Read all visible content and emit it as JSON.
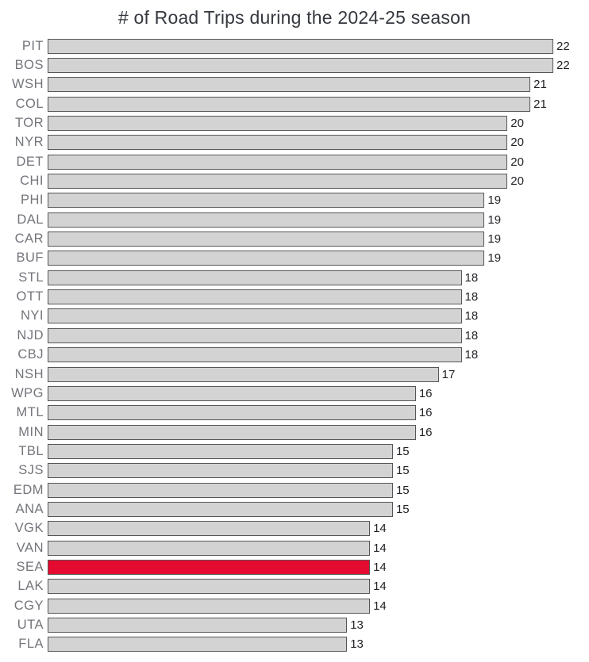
{
  "title": "# of Road Trips during the 2024-25 season",
  "chart_data": {
    "type": "bar",
    "orientation": "horizontal",
    "title": "# of Road Trips during the 2024-25 season",
    "categories": [
      "PIT",
      "BOS",
      "WSH",
      "COL",
      "TOR",
      "NYR",
      "DET",
      "CHI",
      "PHI",
      "DAL",
      "CAR",
      "BUF",
      "STL",
      "OTT",
      "NYI",
      "NJD",
      "CBJ",
      "NSH",
      "WPG",
      "MTL",
      "MIN",
      "TBL",
      "SJS",
      "EDM",
      "ANA",
      "VGK",
      "VAN",
      "SEA",
      "LAK",
      "CGY",
      "UTA",
      "FLA"
    ],
    "values": [
      22,
      22,
      21,
      21,
      20,
      20,
      20,
      20,
      19,
      19,
      19,
      19,
      18,
      18,
      18,
      18,
      18,
      17,
      16,
      16,
      16,
      15,
      15,
      15,
      15,
      14,
      14,
      14,
      14,
      14,
      13,
      13
    ],
    "highlighted_category": "SEA",
    "xlim": [
      0,
      22
    ],
    "data_labels": true,
    "grid": false,
    "legend": false,
    "colors": {
      "bar_fill": "#d2d3d2",
      "bar_border": "#56565a",
      "highlight_fill": "#e50b30",
      "axis_label": "#73757b",
      "value_label": "#202125",
      "title": "#35383f",
      "background": "#ffffff"
    }
  }
}
